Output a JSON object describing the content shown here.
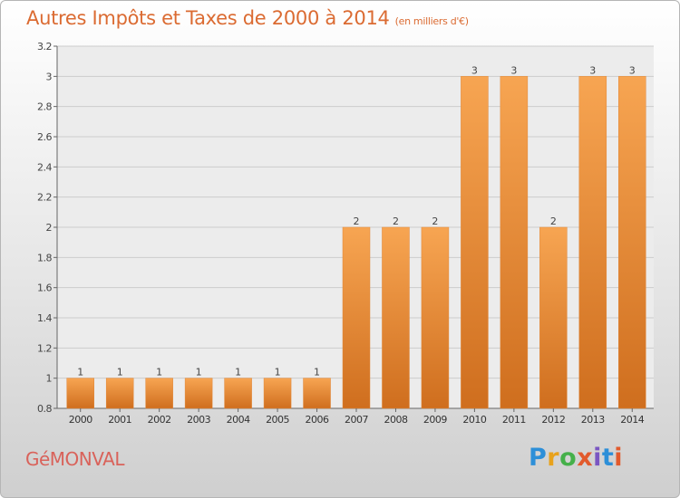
{
  "header": {
    "title": "Autres Impôts et Taxes de 2000 à 2014",
    "unit": "(en milliers d'€)"
  },
  "footer": {
    "commune": "GéMONVAL",
    "logo_letters": [
      "P",
      "r",
      "o",
      "x",
      "i",
      "t",
      "i"
    ]
  },
  "colors": {
    "title": "#db6b32",
    "bar_top": "#f7a552",
    "bar_bottom": "#cf6e1e",
    "grid": "#cccccc",
    "axis": "#666666"
  },
  "chart_data": {
    "type": "bar",
    "title": "Autres Impôts et Taxes de 2000 à 2014",
    "subtitle": "(en milliers d'€)",
    "xlabel": "",
    "ylabel": "",
    "categories": [
      "2000",
      "2001",
      "2002",
      "2003",
      "2004",
      "2005",
      "2006",
      "2007",
      "2008",
      "2009",
      "2010",
      "2011",
      "2012",
      "2013",
      "2014"
    ],
    "values": [
      1,
      1,
      1,
      1,
      1,
      1,
      1,
      2,
      2,
      2,
      3,
      3,
      2,
      3,
      3
    ],
    "data_labels": [
      "1",
      "1",
      "1",
      "1",
      "1",
      "1",
      "1",
      "2",
      "2",
      "2",
      "3",
      "3",
      "2",
      "3",
      "3"
    ],
    "ylim": [
      0.8,
      3.2
    ],
    "yticks": [
      0.8,
      1,
      1.2,
      1.4,
      1.6,
      1.8,
      2,
      2.2,
      2.4,
      2.6,
      2.8,
      3,
      3.2
    ],
    "ytick_labels": [
      "0.8",
      "1",
      "1.2",
      "1.4",
      "1.6",
      "1.8",
      "2",
      "2.2",
      "2.4",
      "2.6",
      "2.8",
      "3",
      "3.2"
    ],
    "grid": true,
    "legend": "none"
  }
}
